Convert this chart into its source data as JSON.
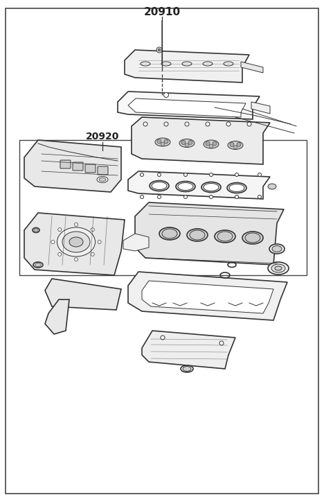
{
  "title": "20910",
  "subtitle": "20920",
  "bg_color": "#ffffff",
  "line_color": "#333333",
  "outer_border_color": "#555555",
  "fig_width": 4.68,
  "fig_height": 7.27,
  "dpi": 100
}
